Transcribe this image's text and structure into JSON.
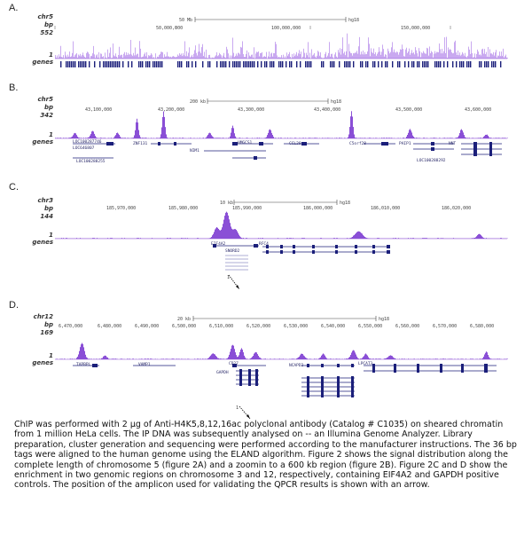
{
  "panels": [
    {
      "letter": "A.",
      "chrom": "chr5",
      "unit": "bp",
      "max": "552",
      "min": "1",
      "genes_label": "genes",
      "scale_left": "50 Mb",
      "scale_right": "hg18",
      "ticks": [
        "50,000,000",
        "100,000,000",
        "150,000,000"
      ]
    },
    {
      "letter": "B.",
      "chrom": "chr5",
      "unit": "bp",
      "max": "342",
      "min": "1",
      "genes_label": "genes",
      "scale_left": "200 kb",
      "scale_right": "hg18",
      "ticks": [
        "43,100,000",
        "43,200,000",
        "43,300,000",
        "43,400,000",
        "43,500,000",
        "43,600,000"
      ],
      "genes": [
        "LOC100287746",
        "LOC646807",
        "ZNF131",
        "HMGCS1",
        "CCL28",
        "C5orf28",
        "PAIP1",
        "NNT",
        "NIM1",
        "LOC100288255",
        "LOC100288292"
      ]
    },
    {
      "letter": "C.",
      "chrom": "chr3",
      "unit": "bp",
      "max": "144",
      "min": "1",
      "genes_label": "genes",
      "scale_left": "10 kb",
      "scale_right": "hg18",
      "ticks": [
        "185,970,000",
        "185,980,000",
        "185,990,000",
        "186,000,000",
        "186,010,000",
        "186,020,000"
      ],
      "genes": [
        "EIF4A2",
        "SNORD2",
        "RFC4"
      ],
      "amplicon_marker": "1"
    },
    {
      "letter": "D.",
      "chrom": "chr12",
      "unit": "bp",
      "max": "169",
      "min": "1",
      "genes_label": "genes",
      "scale_left": "20 kb",
      "scale_right": "hg18",
      "ticks": [
        "6,470,000",
        "6,480,000",
        "6,490,000",
        "6,500,000",
        "6,510,000",
        "6,520,000",
        "6,530,000",
        "6,540,000",
        "6,550,000",
        "6,560,000",
        "6,570,000",
        "6,580,000"
      ],
      "genes": [
        "TAPBPL",
        "VAMP1",
        "CD27",
        "GAPDH",
        "NCAPD2",
        "LPCAT3"
      ],
      "amplicon_marker": "1"
    }
  ],
  "caption": "ChIP was performed with 2 μg of Anti-H4K5,8,12,16ac polyclonal antibody (Catalog # C1035) on sheared chromatin from 1 million HeLa cells. The IP DNA was subsequently analysed on -- an Illumina Genome Analyzer. Library preparation, cluster generation and sequencing were performed according to the manufacturer instructions. The 36 bp tags were aligned to the human genome using the ELAND algorithm. Figure 2 shows the signal distribution along the complete length of chromosome 5 (figure 2A) and a zoomin to a 600 kb region (figure 2B). Figure 2C and D show the enrichment in two genomic regions on chromosome 3 and 12, respectively, containing EIF4A2 and GAPDH positive controls. The position of the amplicon used for validating the QPCR results is shown with an arrow.",
  "colors": {
    "signal": "#8a4fd6",
    "signal_light": "#c9a9f0",
    "gene": "#1b1f7a",
    "axis": "#555555"
  }
}
